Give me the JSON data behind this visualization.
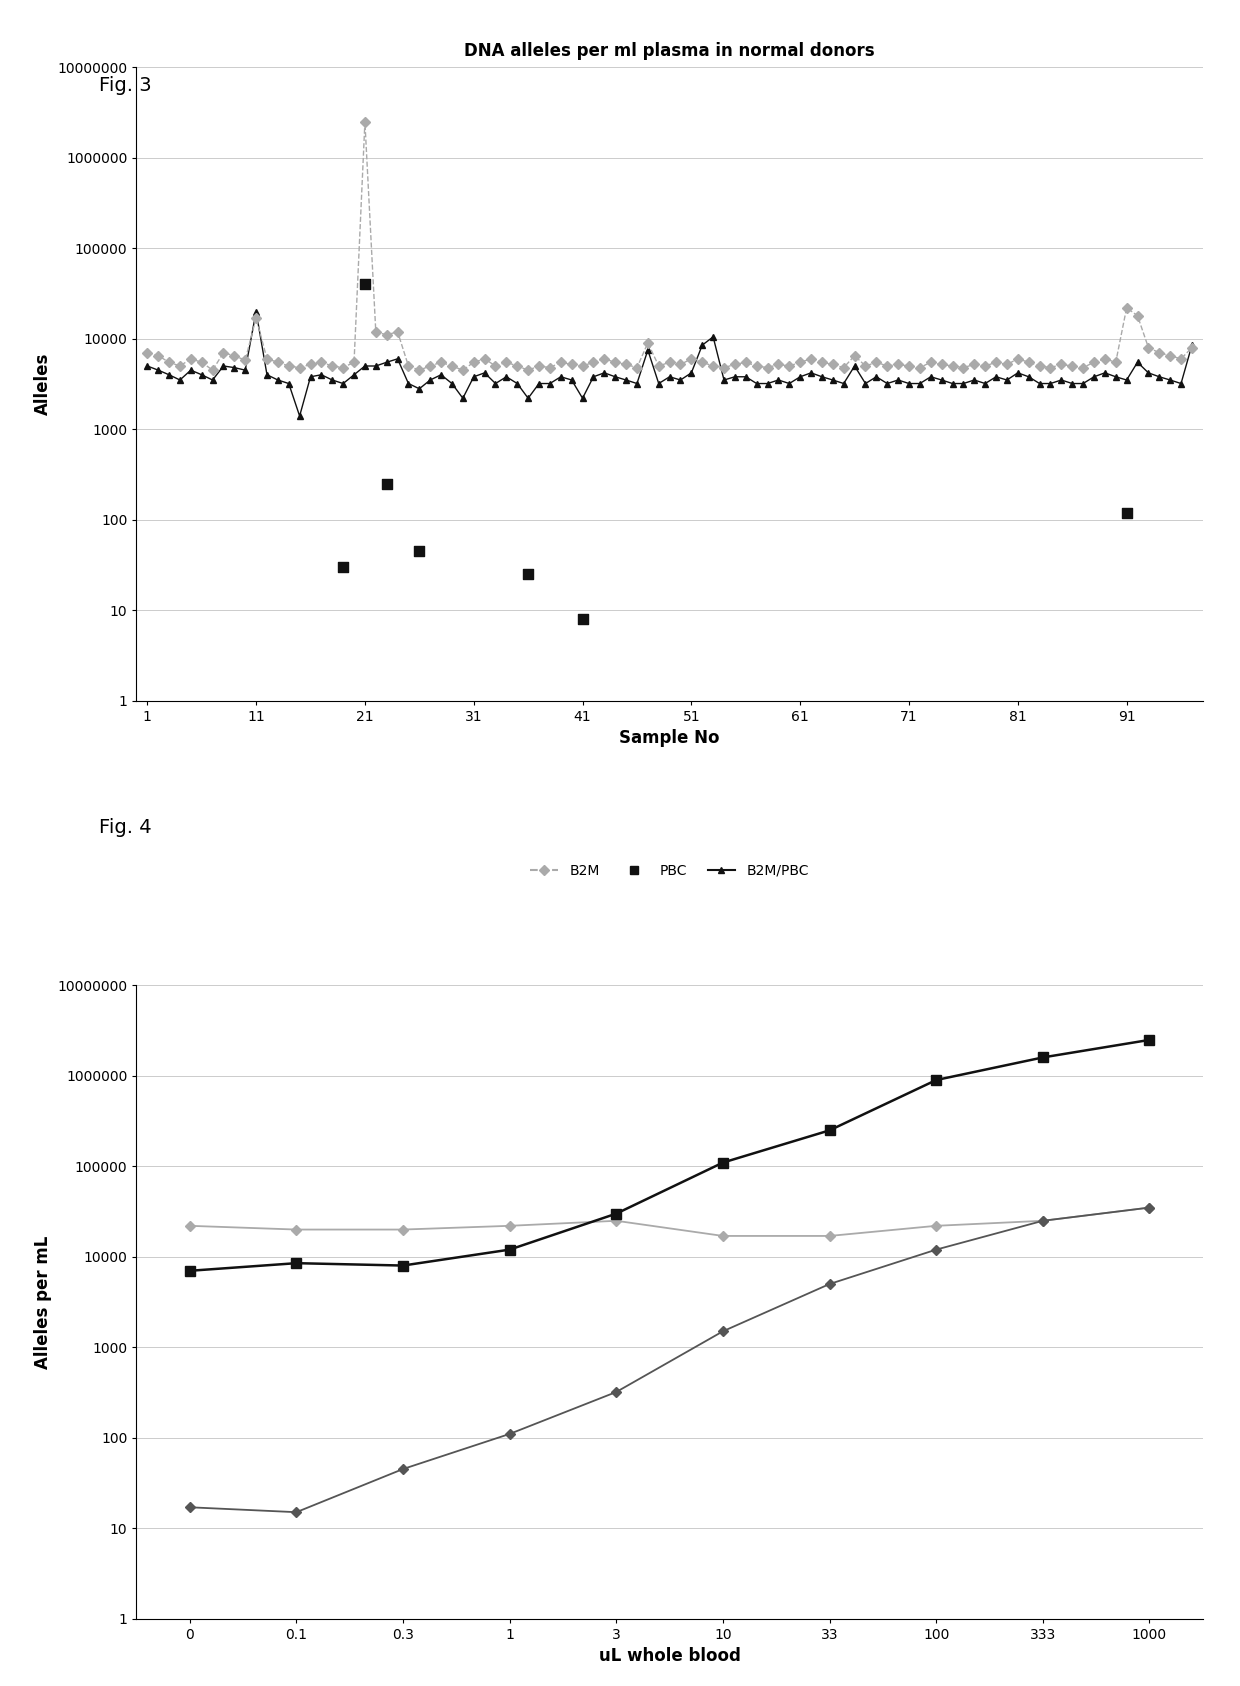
{
  "fig3": {
    "title": "DNA alleles per ml plasma in normal donors",
    "xlabel": "Sample No",
    "ylabel": "Alleles",
    "ylim": [
      1,
      10000000
    ],
    "xlim": [
      0,
      98
    ],
    "xticks": [
      1,
      11,
      21,
      31,
      41,
      51,
      61,
      71,
      81,
      91
    ],
    "b2m_x": [
      1,
      2,
      3,
      4,
      5,
      6,
      7,
      8,
      9,
      10,
      11,
      12,
      13,
      14,
      15,
      16,
      17,
      18,
      19,
      20,
      21,
      22,
      23,
      24,
      25,
      26,
      27,
      28,
      29,
      30,
      31,
      32,
      33,
      34,
      35,
      36,
      37,
      38,
      39,
      40,
      41,
      42,
      43,
      44,
      45,
      46,
      47,
      48,
      49,
      50,
      51,
      52,
      53,
      54,
      55,
      56,
      57,
      58,
      59,
      60,
      61,
      62,
      63,
      64,
      65,
      66,
      67,
      68,
      69,
      70,
      71,
      72,
      73,
      74,
      75,
      76,
      77,
      78,
      79,
      80,
      81,
      82,
      83,
      84,
      85,
      86,
      87,
      88,
      89,
      90,
      91,
      92,
      93,
      94,
      95,
      96,
      97
    ],
    "b2m_y": [
      7000,
      6500,
      5500,
      5000,
      6000,
      5500,
      4500,
      7000,
      6500,
      5800,
      17000,
      6000,
      5500,
      5000,
      4800,
      5200,
      5500,
      5000,
      4800,
      5500,
      2500000,
      12000,
      11000,
      12000,
      5000,
      4500,
      5000,
      5500,
      5000,
      4500,
      5500,
      6000,
      5000,
      5500,
      5000,
      4500,
      5000,
      4800,
      5500,
      5200,
      5000,
      5500,
      6000,
      5500,
      5200,
      4800,
      9000,
      5000,
      5500,
      5200,
      6000,
      5500,
      5000,
      4800,
      5200,
      5500,
      5000,
      4800,
      5200,
      5000,
      5500,
      6000,
      5500,
      5200,
      4800,
      6500,
      5000,
      5500,
      5000,
      5200,
      5000,
      4800,
      5500,
      5200,
      5000,
      4800,
      5200,
      5000,
      5500,
      5200,
      6000,
      5500,
      5000,
      4800,
      5200,
      5000,
      4800,
      5500,
      6000,
      5500,
      22000,
      18000,
      8000,
      7000,
      6500,
      6000,
      8000
    ],
    "pbc_x": [
      19,
      21,
      23,
      26,
      36,
      41,
      91
    ],
    "pbc_y": [
      30,
      40000,
      250,
      45,
      25,
      8,
      120
    ],
    "b2m_pbc_x": [
      1,
      2,
      3,
      4,
      5,
      6,
      7,
      8,
      9,
      10,
      11,
      12,
      13,
      14,
      15,
      16,
      17,
      18,
      19,
      20,
      21,
      22,
      23,
      24,
      25,
      26,
      27,
      28,
      29,
      30,
      31,
      32,
      33,
      34,
      35,
      36,
      37,
      38,
      39,
      40,
      41,
      42,
      43,
      44,
      45,
      46,
      47,
      48,
      49,
      50,
      51,
      52,
      53,
      54,
      55,
      56,
      57,
      58,
      59,
      60,
      61,
      62,
      63,
      64,
      65,
      66,
      67,
      68,
      69,
      70,
      71,
      72,
      73,
      74,
      75,
      76,
      77,
      78,
      79,
      80,
      81,
      82,
      83,
      84,
      85,
      86,
      87,
      88,
      89,
      90,
      91,
      92,
      93,
      94,
      95,
      96,
      97
    ],
    "b2m_pbc_y": [
      5000,
      4500,
      4000,
      3500,
      4500,
      4000,
      3500,
      5000,
      4800,
      4500,
      20000,
      4000,
      3500,
      3200,
      1400,
      3800,
      4000,
      3500,
      3200,
      4000,
      5000,
      5000,
      5500,
      6000,
      3200,
      2800,
      3500,
      4000,
      3200,
      2200,
      3800,
      4200,
      3200,
      3800,
      3200,
      2200,
      3200,
      3200,
      3800,
      3500,
      2200,
      3800,
      4200,
      3800,
      3500,
      3200,
      7500,
      3200,
      3800,
      3500,
      4200,
      8500,
      10500,
      3500,
      3800,
      3800,
      3200,
      3200,
      3500,
      3200,
      3800,
      4200,
      3800,
      3500,
      3200,
      5000,
      3200,
      3800,
      3200,
      3500,
      3200,
      3200,
      3800,
      3500,
      3200,
      3200,
      3500,
      3200,
      3800,
      3500,
      4200,
      3800,
      3200,
      3200,
      3500,
      3200,
      3200,
      3800,
      4200,
      3800,
      3500,
      5500,
      4200,
      3800,
      3500,
      3200,
      8500
    ]
  },
  "fig4": {
    "xlabel": "uL whole blood",
    "ylabel": "Alleles per mL",
    "ylim": [
      1,
      10000000
    ],
    "xtick_labels": [
      "0",
      "0.1",
      "0.3",
      "1",
      "3",
      "10",
      "33",
      "100",
      "333",
      "1000"
    ],
    "b2m_y": [
      7000,
      8500,
      8000,
      12000,
      30000,
      110000,
      250000,
      900000,
      1600000,
      2500000
    ],
    "cpp1_y": [
      22000,
      20000,
      20000,
      22000,
      25000,
      17000,
      17000,
      22000,
      25000,
      35000
    ],
    "pbc_y": [
      17,
      15,
      45,
      110,
      320,
      1500,
      5000,
      12000,
      25000,
      35000
    ]
  }
}
